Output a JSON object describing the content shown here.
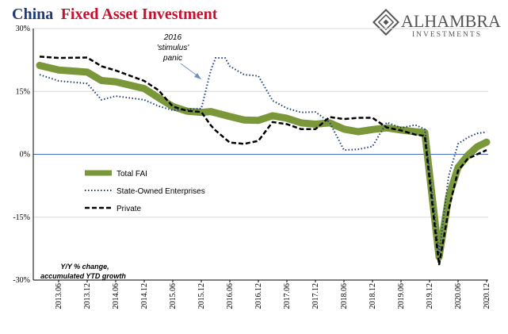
{
  "title": {
    "part1": "China",
    "part2": "Fixed Asset Investment"
  },
  "logo": {
    "name": "ALHAMBRA",
    "subtitle": "INVESTMENTS"
  },
  "legend": [
    "Total FAI",
    "State-Owned Enterprises",
    "Private"
  ],
  "annotation": {
    "line1": "2016",
    "line2": "'stimulus'",
    "line3": "panic"
  },
  "note": {
    "line1": "Y/Y % change,",
    "line2": "accumulated YTD growth"
  },
  "colors": {
    "total": "#7a973a",
    "soe": "#1f3f7a",
    "private": "#000000",
    "zero_line": "#4a6fc0",
    "grid": "#d9d9d9",
    "title_china": "#1f3a7a",
    "title_fai": "#c8102e",
    "logo": "#555555"
  },
  "chart_data": {
    "type": "line",
    "title": "China Fixed Asset Investment",
    "xlabel": "",
    "ylabel": "",
    "ylim": [
      -30,
      30
    ],
    "y_ticks": [
      30,
      15,
      0,
      -15,
      -30
    ],
    "y_tick_labels": [
      "30%",
      "15%",
      "0%",
      "-15%",
      "-30%"
    ],
    "x_start": "2013.01",
    "x_tick_labels": [
      "2013.06",
      "2013.12",
      "2014.06",
      "2014.12",
      "2015.06",
      "2015.12",
      "2016.06",
      "2016.12",
      "2017.06",
      "2017.12",
      "2018.06",
      "2018.12",
      "2019.06",
      "2019.12",
      "2020.06",
      "2020.12"
    ],
    "grid": true,
    "legend_position": "left",
    "series": [
      {
        "name": "Total FAI",
        "x": [
          "2013.02",
          "2013.06",
          "2013.12",
          "2014.03",
          "2014.06",
          "2014.12",
          "2015.03",
          "2015.06",
          "2015.09",
          "2015.12",
          "2016.02",
          "2016.06",
          "2016.09",
          "2016.12",
          "2017.03",
          "2017.06",
          "2017.09",
          "2017.12",
          "2018.03",
          "2018.06",
          "2018.09",
          "2018.12",
          "2019.03",
          "2019.06",
          "2019.09",
          "2019.11",
          "2020.02",
          "2020.04",
          "2020.06",
          "2020.08",
          "2020.10",
          "2020.12"
        ],
        "values": [
          21.2,
          20.1,
          19.6,
          17.6,
          17.3,
          15.7,
          13.5,
          11.4,
          10.3,
          10.0,
          10.2,
          9.0,
          8.2,
          8.1,
          9.2,
          8.6,
          7.5,
          7.2,
          7.5,
          6.0,
          5.4,
          5.9,
          6.3,
          5.8,
          5.4,
          5.2,
          -24.5,
          -10.3,
          -3.1,
          -0.3,
          1.8,
          2.9
        ]
      },
      {
        "name": "State-Owned Enterprises",
        "x": [
          "2013.02",
          "2013.06",
          "2013.12",
          "2014.03",
          "2014.06",
          "2014.12",
          "2015.03",
          "2015.06",
          "2015.09",
          "2015.12",
          "2016.02",
          "2016.03",
          "2016.05",
          "2016.06",
          "2016.09",
          "2016.12",
          "2017.03",
          "2017.06",
          "2017.09",
          "2017.12",
          "2018.03",
          "2018.06",
          "2018.09",
          "2018.12",
          "2019.03",
          "2019.06",
          "2019.09",
          "2019.11",
          "2020.02",
          "2020.04",
          "2020.06",
          "2020.08",
          "2020.10",
          "2020.12"
        ],
        "values": [
          19.0,
          17.5,
          16.9,
          13.0,
          13.9,
          13.0,
          11.5,
          10.5,
          10.7,
          10.9,
          20.0,
          23.0,
          23.0,
          21.0,
          19.0,
          18.7,
          12.8,
          11.0,
          10.0,
          10.1,
          7.6,
          1.0,
          1.2,
          1.9,
          7.6,
          6.3,
          7.0,
          6.0,
          -23.8,
          -5.3,
          2.5,
          4.0,
          5.0,
          5.3
        ]
      },
      {
        "name": "Private",
        "x": [
          "2013.02",
          "2013.06",
          "2013.12",
          "2014.03",
          "2014.06",
          "2014.12",
          "2015.03",
          "2015.06",
          "2015.09",
          "2015.12",
          "2016.02",
          "2016.03",
          "2016.06",
          "2016.09",
          "2016.12",
          "2017.03",
          "2017.06",
          "2017.09",
          "2017.12",
          "2018.03",
          "2018.06",
          "2018.09",
          "2018.12",
          "2019.03",
          "2019.06",
          "2019.09",
          "2019.11",
          "2020.02",
          "2020.04",
          "2020.06",
          "2020.08",
          "2020.10",
          "2020.12"
        ],
        "values": [
          23.3,
          23.0,
          23.1,
          21.0,
          20.0,
          17.5,
          15.3,
          11.4,
          10.4,
          10.1,
          6.9,
          5.7,
          2.8,
          2.5,
          3.2,
          7.7,
          7.2,
          6.0,
          6.0,
          8.9,
          8.4,
          8.7,
          8.7,
          6.4,
          5.7,
          4.7,
          4.4,
          -26.4,
          -13.3,
          -3.9,
          -1.1,
          0.0,
          1.0
        ]
      }
    ]
  }
}
